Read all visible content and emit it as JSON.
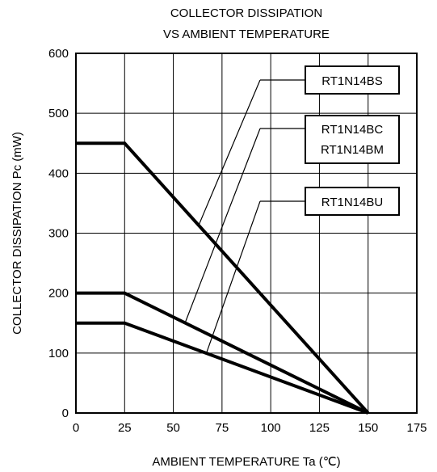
{
  "chart_data": {
    "type": "line",
    "title": [
      "COLLECTOR DISSIPATION",
      "VS AMBIENT TEMPERATURE"
    ],
    "xlabel": "AMBIENT TEMPERATURE Ta (℃)",
    "ylabel": "COLLECTOR DISSIPATION Pc (mW)",
    "xlim": [
      0,
      175
    ],
    "ylim": [
      0,
      600
    ],
    "xticks": [
      0,
      25,
      50,
      75,
      100,
      125,
      150,
      175
    ],
    "yticks": [
      0,
      100,
      200,
      300,
      400,
      500,
      600
    ],
    "grid": true,
    "series": [
      {
        "name": "RT1N14BS",
        "x": [
          0,
          25,
          150
        ],
        "y": [
          450,
          450,
          0
        ]
      },
      {
        "name": "RT1N14BC / RT1N14BM",
        "x": [
          0,
          25,
          150
        ],
        "y": [
          200,
          200,
          0
        ]
      },
      {
        "name": "RT1N14BU",
        "x": [
          0,
          25,
          150
        ],
        "y": [
          150,
          150,
          0
        ]
      }
    ],
    "annotations": [
      {
        "lines": [
          "RT1N14BS"
        ],
        "target_x": 63,
        "target_y": 313
      },
      {
        "lines": [
          "RT1N14BC",
          "RT1N14BM"
        ],
        "target_x": 56,
        "target_y": 150
      },
      {
        "lines": [
          "RT1N14BU"
        ],
        "target_x": 67,
        "target_y": 100
      }
    ]
  }
}
